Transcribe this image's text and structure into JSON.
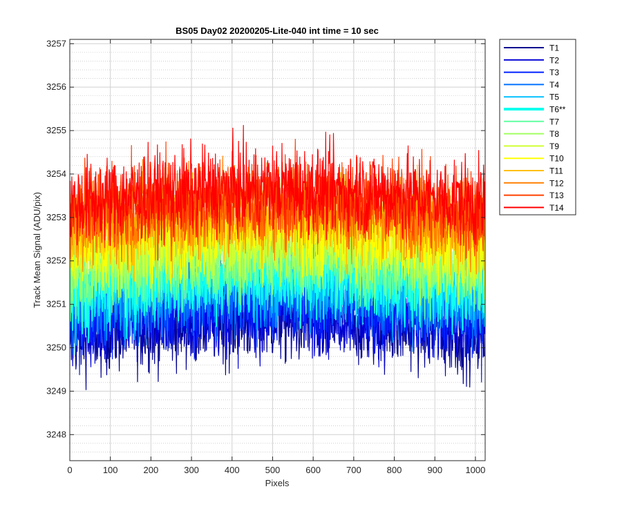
{
  "chart_data": {
    "type": "line",
    "title": "BS05 Day02 20200205-Lite-040 int time = 10 sec",
    "xlabel": "Pixels",
    "ylabel": "Track Mean Signal (ADU/pix)",
    "xlim": [
      0,
      1024
    ],
    "ylim": [
      3247.4,
      3257.1
    ],
    "xticks": [
      0,
      100,
      200,
      300,
      400,
      500,
      600,
      700,
      800,
      900,
      1000
    ],
    "yticks": [
      3248,
      3249,
      3250,
      3251,
      3252,
      3253,
      3254,
      3255,
      3256,
      3257
    ],
    "grid": {
      "major": true,
      "minor_y": true
    },
    "legend_position": "outside-top-right",
    "series": [
      {
        "name": "T1",
        "color": "#00008f",
        "mean": 3250.3,
        "spread": 0.9,
        "highlight": false
      },
      {
        "name": "T2",
        "color": "#0000d6",
        "mean": 3250.5,
        "spread": 0.9,
        "highlight": false
      },
      {
        "name": "T3",
        "color": "#0020ff",
        "mean": 3250.7,
        "spread": 0.9,
        "highlight": false
      },
      {
        "name": "T4",
        "color": "#0070ff",
        "mean": 3251.0,
        "spread": 0.9,
        "highlight": false
      },
      {
        "name": "T5",
        "color": "#00c0ff",
        "mean": 3251.2,
        "spread": 0.9,
        "highlight": false
      },
      {
        "name": "T6**",
        "color": "#10ffef",
        "mean": 3251.4,
        "spread": 0.9,
        "highlight": true
      },
      {
        "name": "T7",
        "color": "#60ffa0",
        "mean": 3251.7,
        "spread": 0.9,
        "highlight": false
      },
      {
        "name": "T8",
        "color": "#a0ff60",
        "mean": 3251.9,
        "spread": 0.9,
        "highlight": false
      },
      {
        "name": "T9",
        "color": "#d0ff30",
        "mean": 3252.2,
        "spread": 0.9,
        "highlight": false
      },
      {
        "name": "T10",
        "color": "#ffff00",
        "mean": 3252.4,
        "spread": 0.9,
        "highlight": false
      },
      {
        "name": "T11",
        "color": "#ffc000",
        "mean": 3252.7,
        "spread": 0.9,
        "highlight": false
      },
      {
        "name": "T12",
        "color": "#ff8000",
        "mean": 3252.9,
        "spread": 0.9,
        "highlight": false
      },
      {
        "name": "T13",
        "color": "#ff4000",
        "mean": 3253.1,
        "spread": 0.9,
        "highlight": false
      },
      {
        "name": "T14",
        "color": "#ff0000",
        "mean": 3253.3,
        "spread": 0.9,
        "highlight": false
      }
    ]
  }
}
